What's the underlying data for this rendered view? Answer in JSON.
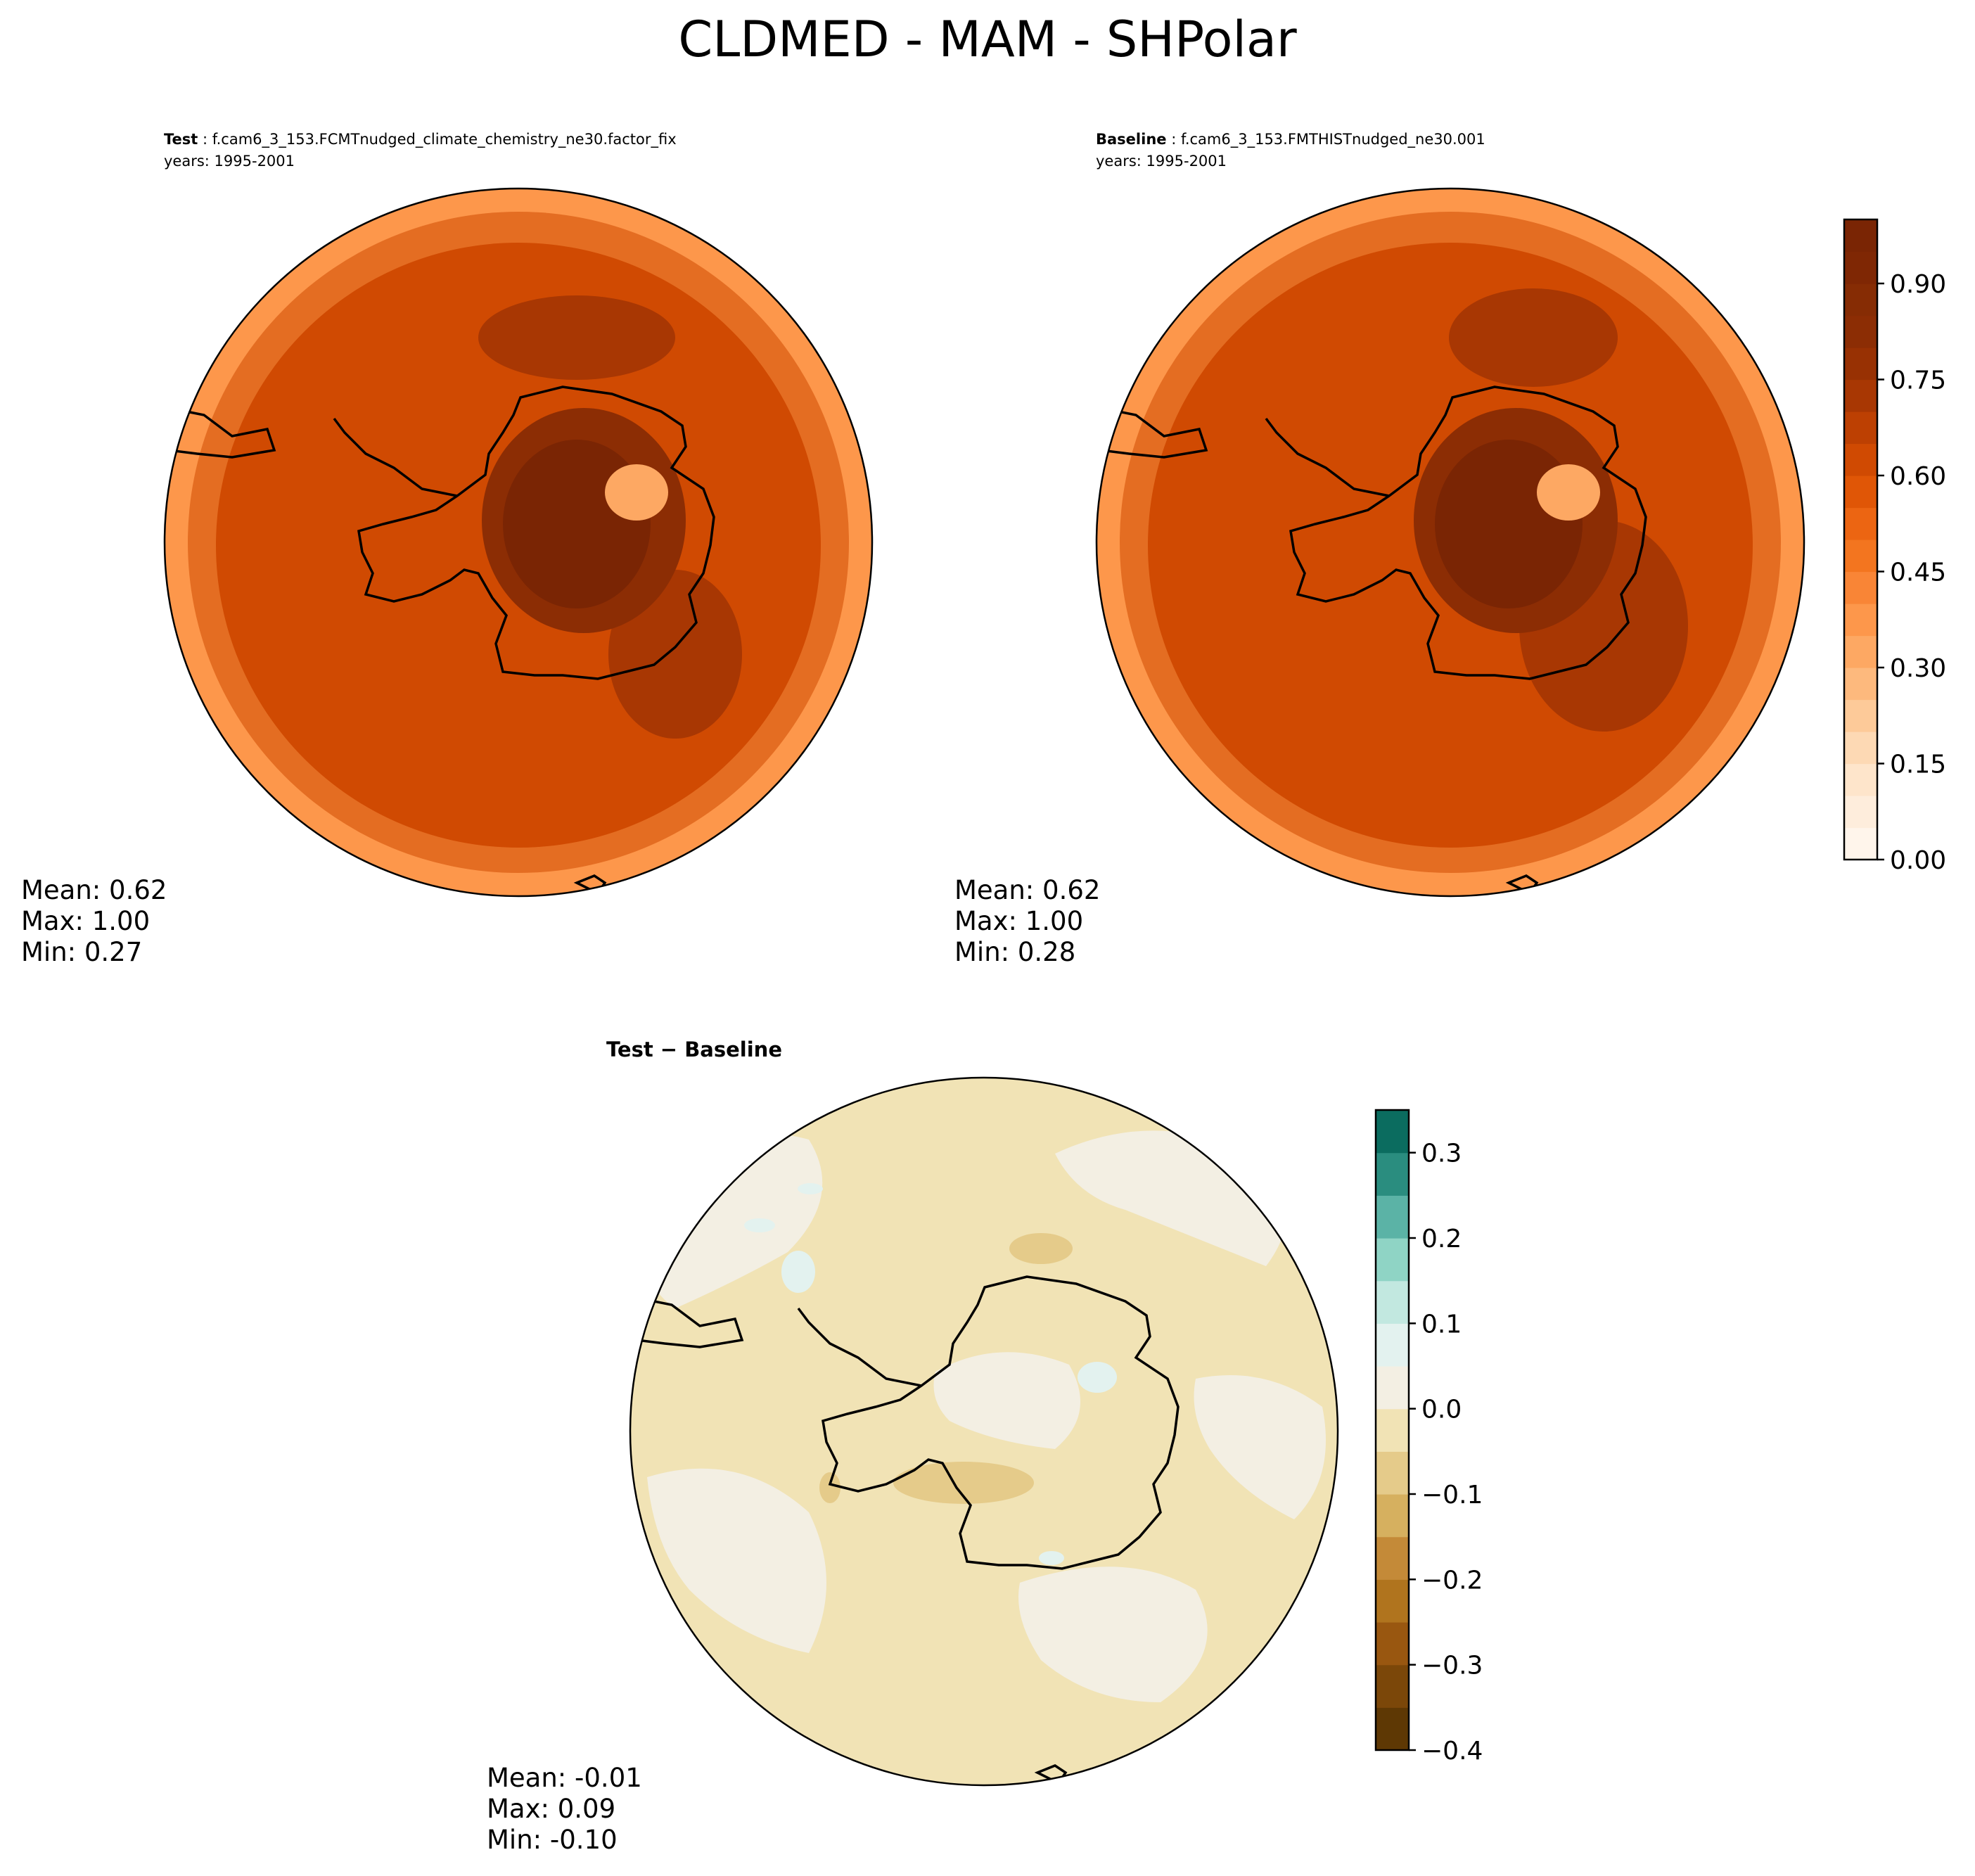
{
  "figure_title": "CLDMED - MAM - SHPolar",
  "chart_data": [
    {
      "type": "heatmap",
      "projection": "south-polar-stereographic",
      "panel": "test",
      "label_bold": "Test",
      "case": ": f.cam6_3_153.FCMTnudged_climate_chemistry_ne30.factor_fix",
      "years": "years: 1995-2001",
      "stats": {
        "mean": "Mean:  0.62",
        "max": "Max:  1.00",
        "min": "Min:  0.27"
      },
      "field_levels": {
        "outer": 0.35,
        "ocean": 0.6,
        "ocean_high": 0.7,
        "interior_ring": 0.8,
        "interior_core": 0.95,
        "low_spot": 0.3
      }
    },
    {
      "type": "heatmap",
      "projection": "south-polar-stereographic",
      "panel": "baseline",
      "label_bold": "Baseline",
      "case": ": f.cam6_3_153.FMTHISTnudged_ne30.001",
      "years": "years: 1995-2001",
      "stats": {
        "mean": "Mean:  0.62",
        "max": "Max:  1.00",
        "min": "Min:  0.28"
      },
      "field_levels": {
        "outer": 0.35,
        "ocean": 0.62,
        "ocean_high": 0.72,
        "interior_ring": 0.82,
        "interior_core": 0.95,
        "low_spot": 0.3
      }
    },
    {
      "type": "heatmap",
      "projection": "south-polar-stereographic",
      "panel": "difference",
      "label_bold": "Test − Baseline",
      "stats": {
        "mean": "Mean: -0.01",
        "max": "Max:  0.09",
        "min": "Min: -0.10"
      },
      "field_levels": {
        "background": -0.02,
        "positive_patch": 0.02,
        "positive_spot": 0.06,
        "negative_patch": -0.06
      }
    }
  ],
  "colorbars": {
    "main": {
      "range": [
        0.0,
        1.0
      ],
      "n_levels": 20,
      "tick_values": [
        0.0,
        0.15,
        0.3,
        0.45,
        0.6,
        0.75,
        0.9
      ],
      "tick_labels": [
        "0.00",
        "0.15",
        "0.30",
        "0.45",
        "0.60",
        "0.75",
        "0.90"
      ],
      "colors": [
        "#fff5eb",
        "#feeddc",
        "#fee5cb",
        "#fdd9b4",
        "#fdca99",
        "#fdb97d",
        "#fda863",
        "#fd974b",
        "#f98536",
        "#f3751f",
        "#ec6512",
        "#e05606",
        "#d04a02",
        "#bd4002",
        "#a83703",
        "#983103",
        "#8c2d04",
        "#862c04",
        "#7f2704",
        "#7a2504"
      ]
    },
    "diff": {
      "range": [
        -0.4,
        0.35
      ],
      "n_levels": 15,
      "tick_values": [
        -0.4,
        -0.3,
        -0.2,
        -0.1,
        0.0,
        0.1,
        0.2,
        0.3
      ],
      "tick_labels": [
        "−0.4",
        "−0.3",
        "−0.2",
        "−0.1",
        "0.0",
        "0.1",
        "0.2",
        "0.3"
      ],
      "colors": [
        "#5e3804",
        "#7b4709",
        "#995710",
        "#b0741e",
        "#c48a38",
        "#d6b05f",
        "#e5cb8a",
        "#f1e3b5",
        "#f3efe3",
        "#e3f2ef",
        "#c2e8e0",
        "#8fd4c5",
        "#5bb3a6",
        "#2a8d7f",
        "#0b6c5f",
        "#00463c"
      ]
    }
  }
}
